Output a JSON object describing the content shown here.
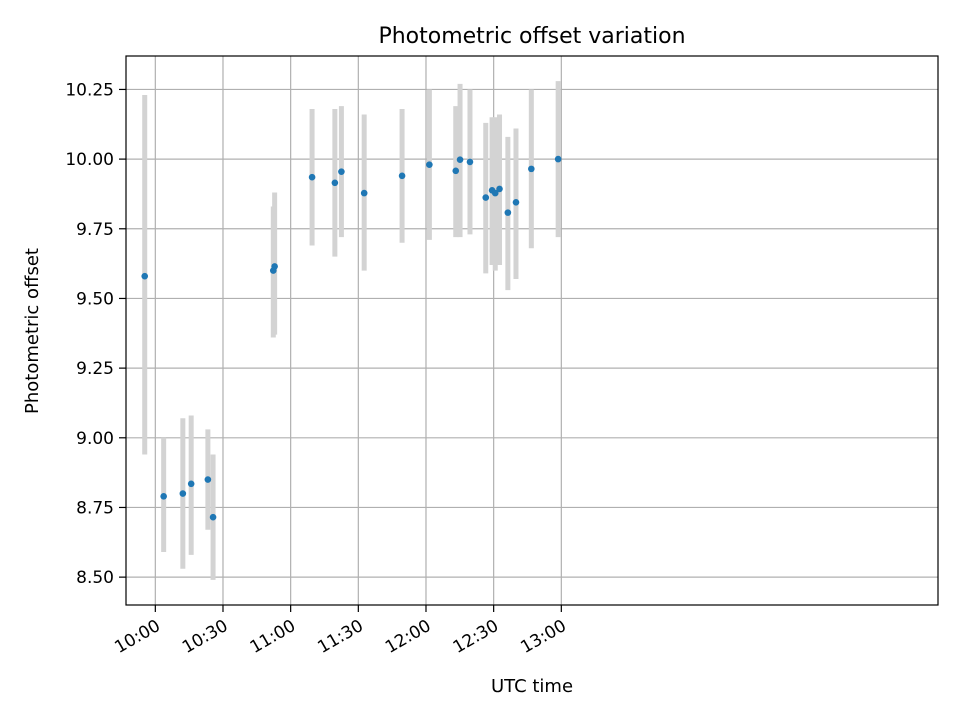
{
  "chart_data": {
    "type": "scatter",
    "title": "Photometric offset variation",
    "xlabel": "UTC time",
    "ylabel": "Photometric offset",
    "xlim": [
      587,
      947
    ],
    "ylim": [
      8.4,
      10.37
    ],
    "grid": true,
    "x_ticks": [
      {
        "value": 600,
        "label": "10:00"
      },
      {
        "value": 630,
        "label": "10:30"
      },
      {
        "value": 660,
        "label": "11:00"
      },
      {
        "value": 690,
        "label": "11:30"
      },
      {
        "value": 720,
        "label": "12:00"
      },
      {
        "value": 750,
        "label": "12:30"
      },
      {
        "value": 780,
        "label": "13:00"
      }
    ],
    "y_ticks": [
      {
        "value": 8.5,
        "label": "8.50"
      },
      {
        "value": 8.75,
        "label": "8.75"
      },
      {
        "value": 9.0,
        "label": "9.00"
      },
      {
        "value": 9.25,
        "label": "9.25"
      },
      {
        "value": 9.5,
        "label": "9.50"
      },
      {
        "value": 9.75,
        "label": "9.75"
      },
      {
        "value": 10.0,
        "label": "10.00"
      },
      {
        "value": 10.25,
        "label": "10.25"
      }
    ],
    "series": [
      {
        "name": "Photometric offset",
        "x_minutes": [
          595.3,
          603.7,
          612.2,
          615.9,
          623.3,
          625.6,
          652.3,
          652.9,
          669.5,
          679.6,
          682.5,
          692.6,
          709.4,
          721.5,
          733.2,
          735.1,
          739.5,
          746.5,
          749.3,
          750.7,
          752.6,
          756.3,
          759.9,
          766.7,
          778.6
        ],
        "y": [
          9.58,
          8.79,
          8.8,
          8.835,
          8.85,
          8.715,
          9.6,
          9.615,
          9.935,
          9.915,
          9.955,
          9.878,
          9.94,
          9.98,
          9.958,
          9.998,
          9.99,
          9.862,
          9.888,
          9.878,
          9.893,
          9.808,
          9.845,
          9.965,
          10.0
        ],
        "y_err_low": [
          8.94,
          8.59,
          8.53,
          8.58,
          8.67,
          8.49,
          9.36,
          9.37,
          9.69,
          9.65,
          9.72,
          9.6,
          9.7,
          9.71,
          9.72,
          9.72,
          9.73,
          9.59,
          9.62,
          9.6,
          9.62,
          9.53,
          9.57,
          9.68,
          9.72
        ],
        "y_err_high": [
          10.23,
          9.0,
          9.07,
          9.08,
          9.03,
          8.94,
          9.83,
          9.88,
          10.18,
          10.18,
          10.19,
          10.16,
          10.18,
          10.25,
          10.19,
          10.27,
          10.25,
          10.13,
          10.15,
          10.15,
          10.16,
          10.08,
          10.11,
          10.25,
          10.28
        ]
      }
    ]
  }
}
